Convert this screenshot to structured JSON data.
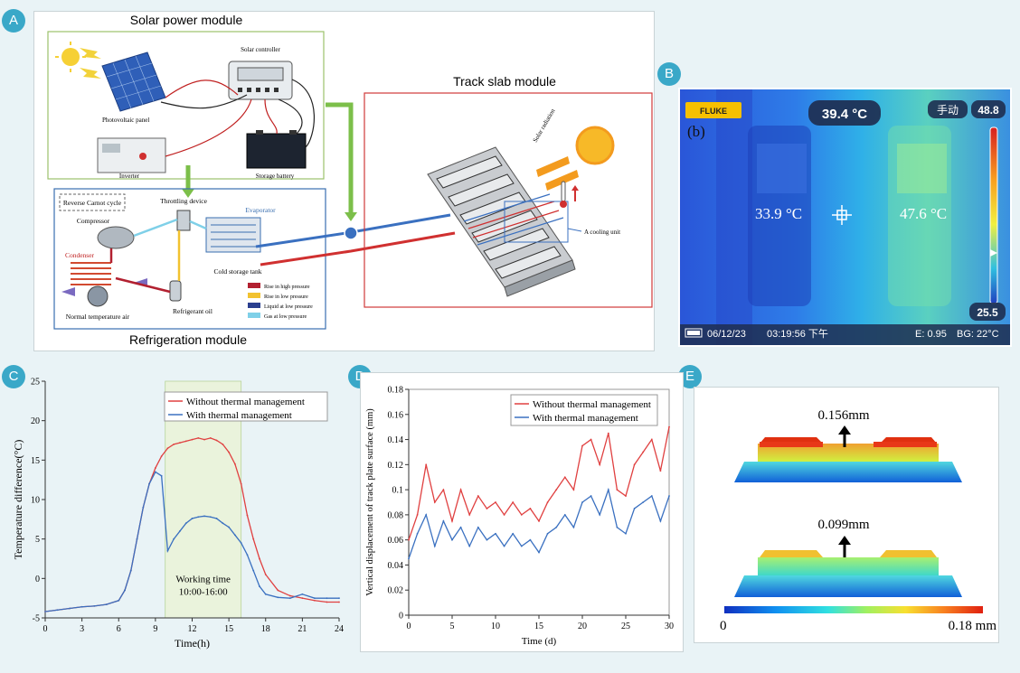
{
  "badges": {
    "a": "A",
    "b": "B",
    "c": "C",
    "d": "D",
    "e": "E"
  },
  "panel_a": {
    "solar_module_title": "Solar power module",
    "track_module_title": "Track slab module",
    "refrig_module_title": "Refrigeration module",
    "solar_controller": "Solar controller",
    "photovoltaic_panel": "Photovoltaic panel",
    "inverter": "Inverter",
    "storage_battery": "Storage battery",
    "reverse_carnot": "Reverse Carnot cycle",
    "throttling_device": "Throttling device",
    "compressor": "Compressor",
    "evaporator": "Evaporator",
    "condenser": "Condenser",
    "cold_storage_tank": "Cold storage tank",
    "refrigerant_oil": "Refrigerant oil",
    "normal_temp_air": "Normal temperature air",
    "solar_radiation": "Solar radiation",
    "cooling_unit": "A cooling unit",
    "legend": [
      "Rise in high pressure",
      "Rise in low pressure",
      "Liquid at low pressure",
      "Gas at low pressure"
    ],
    "legend_colors": [
      "#b22030",
      "#f2c230",
      "#2a3f8f",
      "#7fd0e8"
    ]
  },
  "panel_b": {
    "brand": "FLUKE",
    "label": "(b)",
    "center_temp": "39.4 °C",
    "mode": "手动",
    "max": "48.8",
    "min": "25.5",
    "left_temp": "33.9 °C",
    "right_temp": "47.6 °C",
    "date": "06/12/23",
    "time": "03:19:56 下午",
    "emissivity": "E: 0.95",
    "bg": "BG: 22°C"
  },
  "chart_data": [
    {
      "type": "line",
      "xlabel": "Time(h)",
      "ylabel": "Temperature difference(°C)",
      "xlim": [
        0,
        24
      ],
      "ylim": [
        -5,
        25
      ],
      "xticks": [
        0,
        3,
        6,
        9,
        12,
        15,
        18,
        21,
        24
      ],
      "yticks": [
        -5,
        0,
        5,
        10,
        15,
        20,
        25
      ],
      "shaded_region": [
        9.8,
        16
      ],
      "annotation": [
        "Working time",
        "10:00-16:00"
      ],
      "legend_position": "top-right",
      "x": [
        0,
        1,
        2,
        3,
        4,
        5,
        6,
        6.5,
        7,
        7.5,
        8,
        8.5,
        9,
        9.5,
        10,
        10.5,
        11,
        11.5,
        12,
        12.5,
        13,
        13.5,
        14,
        14.5,
        15,
        15.5,
        16,
        16.5,
        17,
        17.5,
        18,
        19,
        20,
        21,
        22,
        23,
        24
      ],
      "series": [
        {
          "name": "Without thermal management",
          "color": "#e04040",
          "values": [
            -4.2,
            -4,
            -3.8,
            -3.6,
            -3.5,
            -3.3,
            -2.8,
            -1.5,
            1,
            5,
            9,
            12,
            14,
            15.5,
            16.5,
            17,
            17.2,
            17.4,
            17.6,
            17.8,
            17.6,
            17.8,
            17.5,
            17,
            16,
            14.5,
            12,
            8,
            5,
            2.5,
            0.5,
            -1.5,
            -2.2,
            -2.5,
            -2.8,
            -3,
            -3
          ]
        },
        {
          "name": "With thermal management",
          "color": "#3a70c0",
          "values": [
            -4.2,
            -4,
            -3.8,
            -3.6,
            -3.5,
            -3.3,
            -2.8,
            -1.5,
            1,
            5,
            9,
            12,
            13.5,
            13,
            3.5,
            5,
            6,
            7,
            7.6,
            7.8,
            7.9,
            7.8,
            7.6,
            7,
            6.5,
            5.5,
            4.5,
            3,
            1,
            -1,
            -2,
            -2.4,
            -2.5,
            -2,
            -2.5,
            -2.5,
            -2.5
          ]
        }
      ]
    },
    {
      "type": "line",
      "xlabel": "Time (d)",
      "ylabel": "Vertical displacement of track plate surface (mm)",
      "xlim": [
        0,
        30
      ],
      "ylim": [
        0,
        0.18
      ],
      "xticks": [
        0,
        5,
        10,
        15,
        20,
        25,
        30
      ],
      "yticks": [
        0,
        0.02,
        0.04,
        0.06,
        0.08,
        0.1,
        0.12,
        0.14,
        0.16,
        0.18
      ],
      "legend_position": "top-right",
      "x": [
        0,
        1,
        2,
        3,
        4,
        5,
        6,
        7,
        8,
        9,
        10,
        11,
        12,
        13,
        14,
        15,
        16,
        17,
        18,
        19,
        20,
        21,
        22,
        23,
        24,
        25,
        26,
        27,
        28,
        29,
        30
      ],
      "series": [
        {
          "name": "Without thermal management",
          "color": "#e04040",
          "values": [
            0.06,
            0.08,
            0.12,
            0.09,
            0.1,
            0.075,
            0.1,
            0.08,
            0.095,
            0.085,
            0.09,
            0.08,
            0.09,
            0.08,
            0.085,
            0.075,
            0.09,
            0.1,
            0.11,
            0.1,
            0.135,
            0.14,
            0.12,
            0.145,
            0.1,
            0.095,
            0.12,
            0.13,
            0.14,
            0.115,
            0.15
          ]
        },
        {
          "name": "With thermal management",
          "color": "#3a70c0",
          "values": [
            0.045,
            0.065,
            0.08,
            0.055,
            0.075,
            0.06,
            0.07,
            0.055,
            0.07,
            0.06,
            0.065,
            0.055,
            0.065,
            0.055,
            0.06,
            0.05,
            0.065,
            0.07,
            0.08,
            0.07,
            0.09,
            0.095,
            0.08,
            0.1,
            0.07,
            0.065,
            0.085,
            0.09,
            0.095,
            0.075,
            0.095
          ]
        }
      ]
    }
  ],
  "panel_e": {
    "top_value": "0.156mm",
    "bottom_value": "0.099mm",
    "scale_min": "0",
    "scale_max": "0.18 mm"
  }
}
